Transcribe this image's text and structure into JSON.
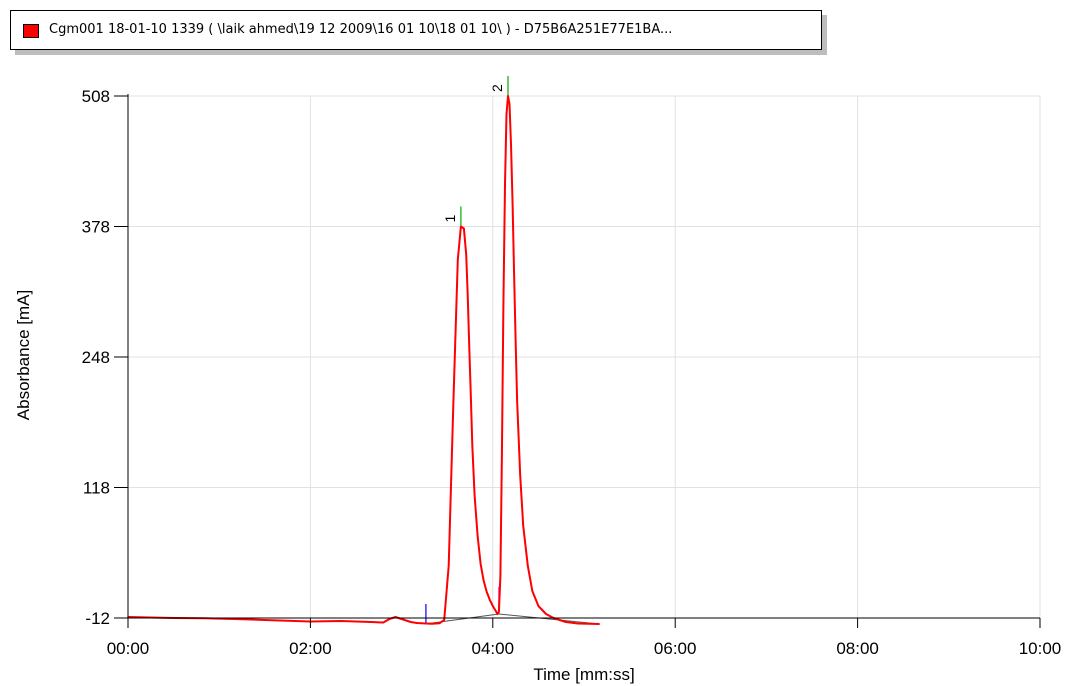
{
  "legend": {
    "text": "Cgm001 18-01-10 1339  ( \\laik ahmed\\19 12 2009\\16 01 10\\18 01 10\\ ) - D75B6A251E77E1BA...",
    "color": "#ff0000"
  },
  "chart_data": {
    "type": "line",
    "xlabel": "Time [mm:ss]",
    "ylabel": "Absorbance [mA]",
    "xlim": [
      0,
      600
    ],
    "ylim": [
      -12,
      508
    ],
    "x_ticks": [
      {
        "value": 0,
        "label": "00:00"
      },
      {
        "value": 120,
        "label": "02:00"
      },
      {
        "value": 240,
        "label": "04:00"
      },
      {
        "value": 360,
        "label": "06:00"
      },
      {
        "value": 480,
        "label": "08:00"
      },
      {
        "value": 600,
        "label": "10:00"
      }
    ],
    "y_ticks": [
      {
        "value": -12,
        "label": "-12"
      },
      {
        "value": 118,
        "label": "118"
      },
      {
        "value": 248,
        "label": "248"
      },
      {
        "value": 378,
        "label": "378"
      },
      {
        "value": 508,
        "label": "508"
      }
    ],
    "grid": true,
    "series": [
      {
        "color": "#ff0000",
        "x": [
          0,
          15,
          30,
          50,
          70,
          90,
          110,
          120,
          130,
          140,
          150,
          160,
          168,
          172,
          176,
          180,
          186,
          190,
          196,
          200,
          205,
          208,
          211,
          214,
          217,
          219,
          221,
          222.5,
          223.5,
          224.5,
          225.5,
          226.5,
          228,
          230,
          232,
          234,
          236,
          238,
          240,
          242,
          243,
          244,
          245,
          246,
          247,
          248,
          249,
          250,
          251,
          252,
          253,
          254,
          255,
          256,
          258,
          260,
          263,
          266,
          270,
          275,
          280,
          288,
          296,
          310
        ],
        "values": [
          -11,
          -11.5,
          -12,
          -12.3,
          -13,
          -14,
          -15,
          -15.5,
          -15.2,
          -15,
          -15.5,
          -16,
          -16.5,
          -13,
          -11,
          -13,
          -16,
          -17,
          -17.5,
          -17.8,
          -17.2,
          -14,
          40,
          200,
          345,
          378,
          376,
          350,
          310,
          260,
          210,
          160,
          110,
          70,
          42,
          25,
          14,
          6,
          0,
          -5,
          -8,
          -6,
          30,
          150,
          300,
          420,
          490,
          508,
          500,
          460,
          400,
          330,
          265,
          205,
          130,
          80,
          40,
          15,
          0,
          -8,
          -12,
          -16,
          -17.5,
          -18
        ]
      }
    ],
    "peaks": [
      {
        "label": "1",
        "x": 219,
        "y": 378
      },
      {
        "label": "2",
        "x": 250,
        "y": 508
      }
    ],
    "baseline_segments": [
      {
        "x": [
          196,
          244
        ],
        "values": [
          -17.8,
          -8
        ]
      },
      {
        "x": [
          244,
          310
        ],
        "values": [
          -8,
          -18
        ]
      }
    ],
    "event_markers": [
      {
        "x": 196,
        "values": [
          -18,
          2
        ],
        "color": "#0000ff"
      },
      {
        "x": 244,
        "values": [
          -8,
          19
        ],
        "color": "#ff00ff"
      },
      {
        "x": 219,
        "values": [
          378,
          398
        ],
        "color": "#00b000"
      },
      {
        "x": 250,
        "values": [
          508,
          528
        ],
        "color": "#00b000"
      }
    ]
  }
}
